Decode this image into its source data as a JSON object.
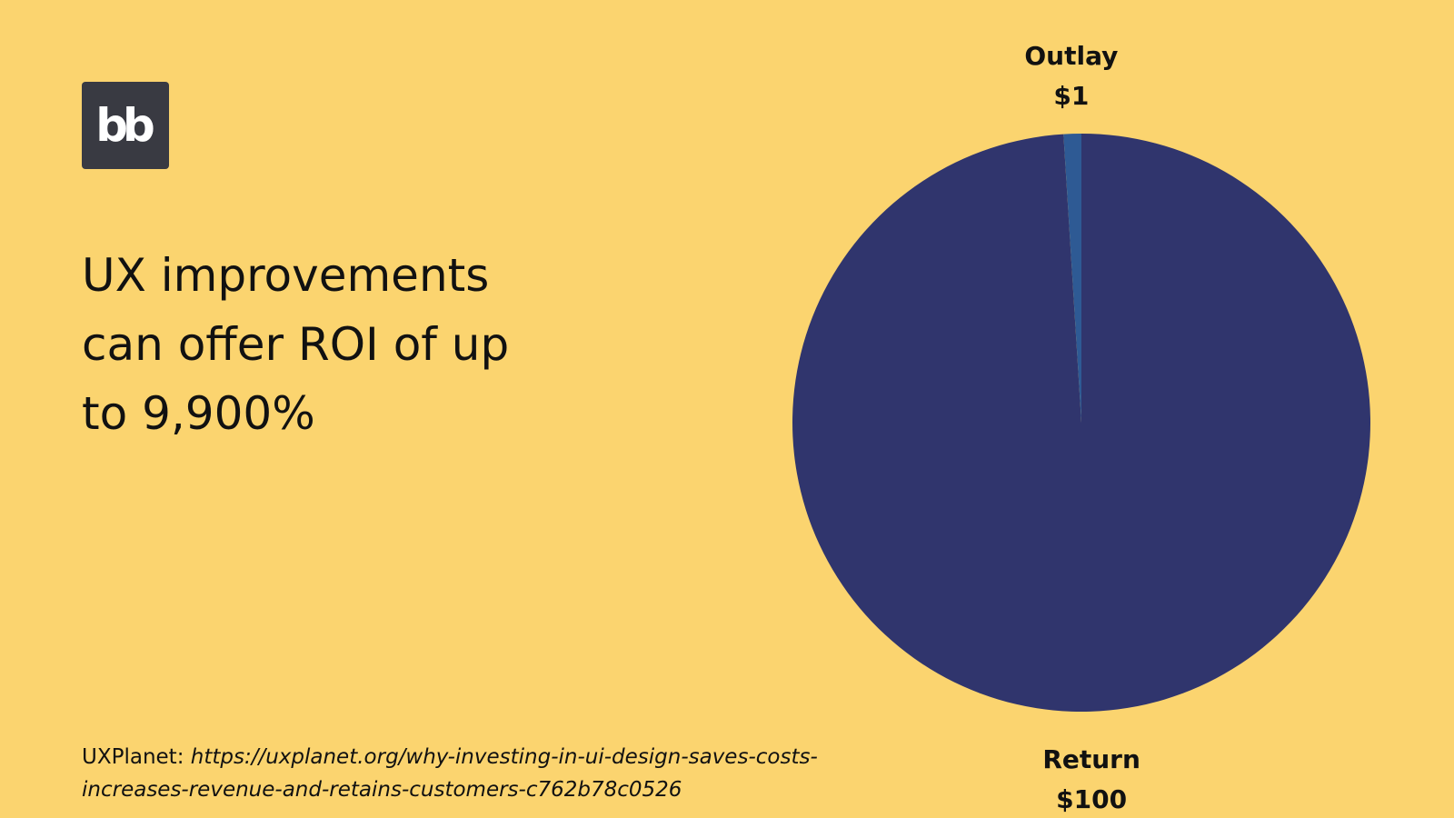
{
  "logo": "bb",
  "source": {
    "name": "UXPlanet:",
    "url": "https://uxplanet.org/why-investing-in-ui-design-saves-costs-increases-revenue-and-retains-customers-c762b78c0526"
  },
  "chart_data": {
    "type": "pie",
    "title": "UX improvements can offer ROI of up to 9,900%",
    "categories": [
      "Outlay",
      "Return"
    ],
    "values": [
      1,
      100
    ],
    "value_labels": [
      "$1",
      "$100"
    ],
    "colors": [
      "#2e5a94",
      "#30356d"
    ]
  }
}
